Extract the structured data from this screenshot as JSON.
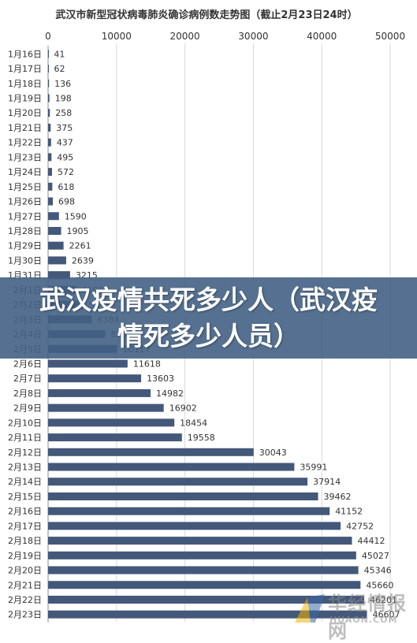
{
  "chart_data": {
    "type": "bar",
    "orientation": "horizontal",
    "title": "武汉市新型冠状病毒肺炎确诊病例数走势图（截止2月23日24时）",
    "xlim": [
      0,
      50000
    ],
    "x_ticks": [
      "0",
      "10000",
      "20000",
      "30000",
      "40000",
      "50000"
    ],
    "grid": true,
    "bar_color": "#44587a",
    "categories": [
      "1月16日",
      "1月17日",
      "1月18日",
      "1月19日",
      "1月20日",
      "1月21日",
      "1月22日",
      "1月23日",
      "1月24日",
      "1月25日",
      "1月26日",
      "1月27日",
      "1月28日",
      "1月29日",
      "1月30日",
      "1月31日",
      "2月1日",
      "2月2日",
      "2月3日",
      "2月4日",
      "2月5日",
      "2月6日",
      "2月7日",
      "2月8日",
      "2月9日",
      "2月10日",
      "2月11日",
      "2月12日",
      "2月13日",
      "2月14日",
      "2月15日",
      "2月16日",
      "2月17日",
      "2月18日",
      "2月19日",
      "2月20日",
      "2月21日",
      "2月22日",
      "2月23日"
    ],
    "values": [
      41,
      62,
      136,
      198,
      258,
      375,
      437,
      495,
      572,
      618,
      698,
      1590,
      1905,
      2261,
      2639,
      3215,
      4109,
      5142,
      6384,
      8351,
      10117,
      11618,
      13603,
      14982,
      16902,
      18454,
      19558,
      30043,
      35991,
      37914,
      39462,
      41152,
      42752,
      44412,
      45027,
      45346,
      45660,
      46201,
      46607
    ]
  },
  "banner": {
    "text": "武汉疫情共死多少人（武汉疫情死多少人员）",
    "color": "#426084"
  },
  "watermark": {
    "cn": "华经情报网",
    "en": "HUAON.COM"
  }
}
